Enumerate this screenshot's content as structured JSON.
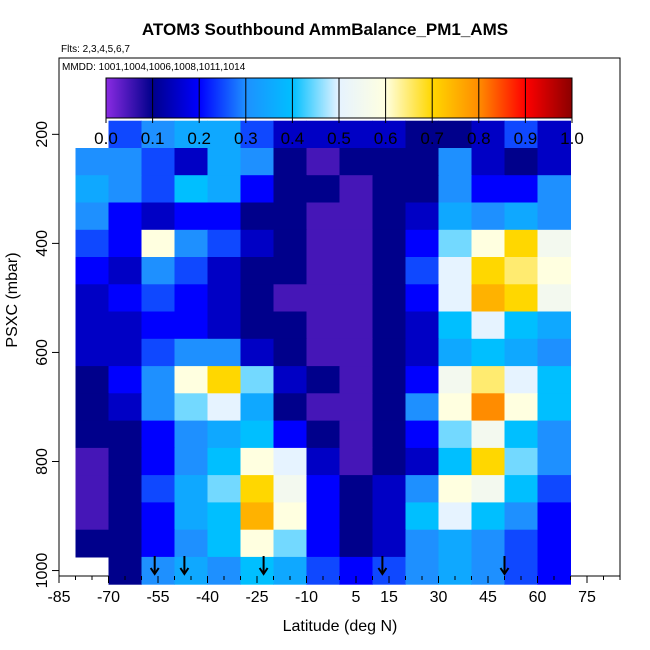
{
  "chart_data": {
    "type": "heatmap",
    "title": "ATOM3 Southbound AmmBalance_PM1_AMS",
    "subtitle": "Flts: 2,3,4,5,6,7",
    "annotation": "MMDD: 1001,1004,1006,1008,1011,1014",
    "xlabel": "Latitude (deg N)",
    "ylabel": "PSXC (mbar)",
    "x_ticks": [
      "-85",
      "-70",
      "-55",
      "-40",
      "-25",
      "-10",
      "5",
      "15",
      "30",
      "45",
      "60",
      "75"
    ],
    "y_ticks": [
      "200",
      "400",
      "600",
      "800",
      "1000"
    ],
    "xlim": [
      -85,
      85
    ],
    "ylim": [
      1010,
      60
    ],
    "y_reversed": true,
    "colorbar": {
      "ticks": [
        "0.0",
        "0.1",
        "0.2",
        "0.3",
        "0.4",
        "0.5",
        "0.6",
        "0.7",
        "0.8",
        "0.9",
        "1.0"
      ],
      "range": [
        0,
        1
      ],
      "placement": "top"
    },
    "arrows_latitude": [
      -56,
      -47,
      -23,
      13,
      50
    ],
    "pressure_levels": [
      200,
      250,
      300,
      350,
      400,
      450,
      500,
      550,
      600,
      650,
      700,
      750,
      800,
      850,
      900,
      950,
      1000
    ],
    "latitude_bins": [
      -75,
      -65,
      -55,
      -45,
      -35,
      -25,
      -15,
      -5,
      5,
      15,
      25,
      35,
      45,
      55,
      65
    ],
    "values": [
      [
        null,
        0.25,
        0.3,
        0.35,
        0.35,
        0.25,
        0.15,
        0.15,
        0.15,
        0.15,
        0.1,
        0.1,
        0.15,
        0.25,
        0.15
      ],
      [
        0.3,
        0.3,
        0.25,
        0.15,
        0.35,
        0.3,
        0.1,
        0.05,
        0.1,
        0.1,
        0.1,
        0.3,
        0.15,
        0.1,
        0.15
      ],
      [
        0.35,
        0.3,
        0.25,
        0.4,
        0.35,
        0.2,
        0.1,
        0.1,
        0.05,
        0.1,
        0.1,
        0.3,
        0.2,
        0.2,
        0.3
      ],
      [
        0.3,
        0.2,
        0.15,
        0.2,
        0.2,
        0.1,
        0.1,
        0.05,
        0.05,
        0.1,
        0.15,
        0.35,
        0.3,
        0.35,
        0.3
      ],
      [
        0.25,
        0.2,
        0.6,
        0.3,
        0.25,
        0.15,
        0.1,
        0.05,
        0.05,
        0.1,
        0.2,
        0.45,
        0.6,
        0.7,
        0.55
      ],
      [
        0.2,
        0.15,
        0.3,
        0.25,
        0.15,
        0.1,
        0.1,
        0.05,
        0.05,
        0.1,
        0.25,
        0.5,
        0.7,
        0.65,
        0.6
      ],
      [
        0.15,
        0.2,
        0.25,
        0.2,
        0.15,
        0.1,
        0.05,
        0.05,
        0.05,
        0.1,
        0.2,
        0.5,
        0.75,
        0.7,
        0.55
      ],
      [
        0.15,
        0.15,
        0.2,
        0.2,
        0.15,
        0.1,
        0.1,
        0.05,
        0.05,
        0.1,
        0.15,
        0.4,
        0.5,
        0.4,
        0.35
      ],
      [
        0.15,
        0.15,
        0.25,
        0.3,
        0.3,
        0.15,
        0.1,
        0.05,
        0.05,
        0.1,
        0.15,
        0.35,
        0.4,
        0.35,
        0.3
      ],
      [
        0.1,
        0.2,
        0.3,
        0.6,
        0.7,
        0.45,
        0.15,
        0.1,
        0.05,
        0.1,
        0.2,
        0.55,
        0.65,
        0.5,
        0.4
      ],
      [
        0.1,
        0.15,
        0.3,
        0.45,
        0.5,
        0.35,
        0.1,
        0.05,
        0.05,
        0.1,
        0.3,
        0.6,
        0.8,
        0.6,
        0.4
      ],
      [
        0.1,
        0.1,
        0.2,
        0.3,
        0.35,
        0.4,
        0.2,
        0.1,
        0.05,
        0.1,
        0.2,
        0.45,
        0.55,
        0.4,
        0.3
      ],
      [
        0.05,
        0.1,
        0.2,
        0.3,
        0.4,
        0.6,
        0.5,
        0.15,
        0.05,
        0.1,
        0.15,
        0.4,
        0.7,
        0.45,
        0.3
      ],
      [
        0.05,
        0.1,
        0.25,
        0.35,
        0.45,
        0.7,
        0.55,
        0.2,
        0.1,
        0.15,
        0.3,
        0.6,
        0.55,
        0.4,
        0.25
      ],
      [
        0.05,
        0.1,
        0.2,
        0.35,
        0.4,
        0.75,
        0.6,
        0.2,
        0.1,
        0.15,
        0.4,
        0.5,
        0.4,
        0.3,
        0.2
      ],
      [
        0.1,
        0.1,
        0.2,
        0.3,
        0.4,
        0.6,
        0.45,
        0.2,
        0.1,
        0.15,
        0.3,
        0.35,
        0.3,
        0.25,
        0.2
      ],
      [
        null,
        0.1,
        0.3,
        0.35,
        0.3,
        0.4,
        0.35,
        0.25,
        0.2,
        0.25,
        0.3,
        0.35,
        0.3,
        0.25,
        0.2
      ]
    ]
  }
}
